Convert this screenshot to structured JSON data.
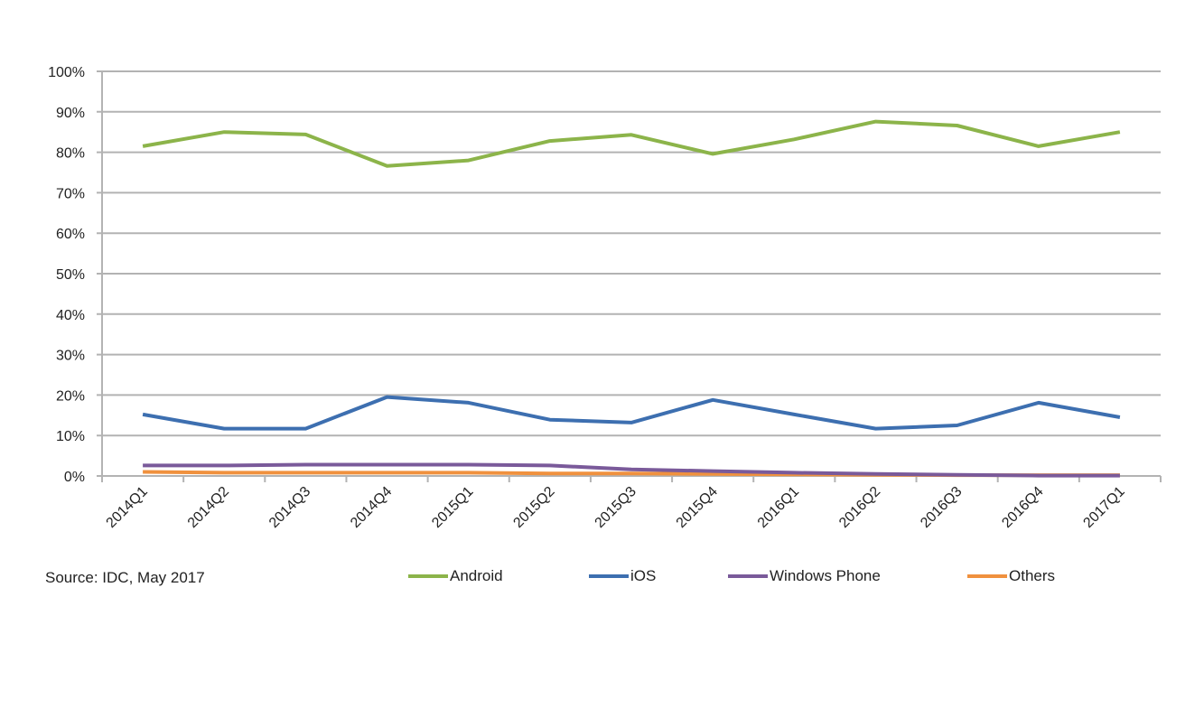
{
  "chart_data": {
    "type": "line",
    "title": "",
    "xlabel": "",
    "ylabel": "",
    "ylim": [
      0,
      100
    ],
    "y_ticks": [
      "0%",
      "10%",
      "20%",
      "30%",
      "40%",
      "50%",
      "60%",
      "70%",
      "80%",
      "90%",
      "100%"
    ],
    "grid": true,
    "legend_position": "bottom",
    "categories": [
      "2014Q1",
      "2014Q2",
      "2014Q3",
      "2014Q4",
      "2015Q1",
      "2015Q2",
      "2015Q3",
      "2015Q4",
      "2016Q1",
      "2016Q2",
      "2016Q3",
      "2016Q4",
      "2017Q1"
    ],
    "series": [
      {
        "name": "Android",
        "color": "#8cb44a",
        "values": [
          81.5,
          85.0,
          84.4,
          76.6,
          78.0,
          82.8,
          84.3,
          79.6,
          83.2,
          87.6,
          86.6,
          81.5,
          85.0
        ]
      },
      {
        "name": "iOS",
        "color": "#3d6fb0",
        "values": [
          15.2,
          11.7,
          11.7,
          19.5,
          18.1,
          13.9,
          13.2,
          18.8,
          15.2,
          11.7,
          12.5,
          18.1,
          14.5
        ]
      },
      {
        "name": "Windows Phone",
        "color": "#7a5a9a",
        "values": [
          2.6,
          2.6,
          2.8,
          2.8,
          2.8,
          2.6,
          1.6,
          1.2,
          0.8,
          0.5,
          0.3,
          0.1,
          0.1
        ]
      },
      {
        "name": "Others",
        "color": "#f0913e",
        "values": [
          1.0,
          0.8,
          0.8,
          0.8,
          0.8,
          0.6,
          0.6,
          0.5,
          0.4,
          0.3,
          0.2,
          0.2,
          0.2
        ]
      }
    ]
  },
  "source_note": "Source: IDC, May 2017",
  "legend": {
    "items": [
      {
        "label": "Android",
        "color": "#8cb44a"
      },
      {
        "label": "iOS",
        "color": "#3d6fb0"
      },
      {
        "label": "Windows Phone",
        "color": "#7a5a9a"
      },
      {
        "label": "Others",
        "color": "#f0913e"
      }
    ]
  }
}
